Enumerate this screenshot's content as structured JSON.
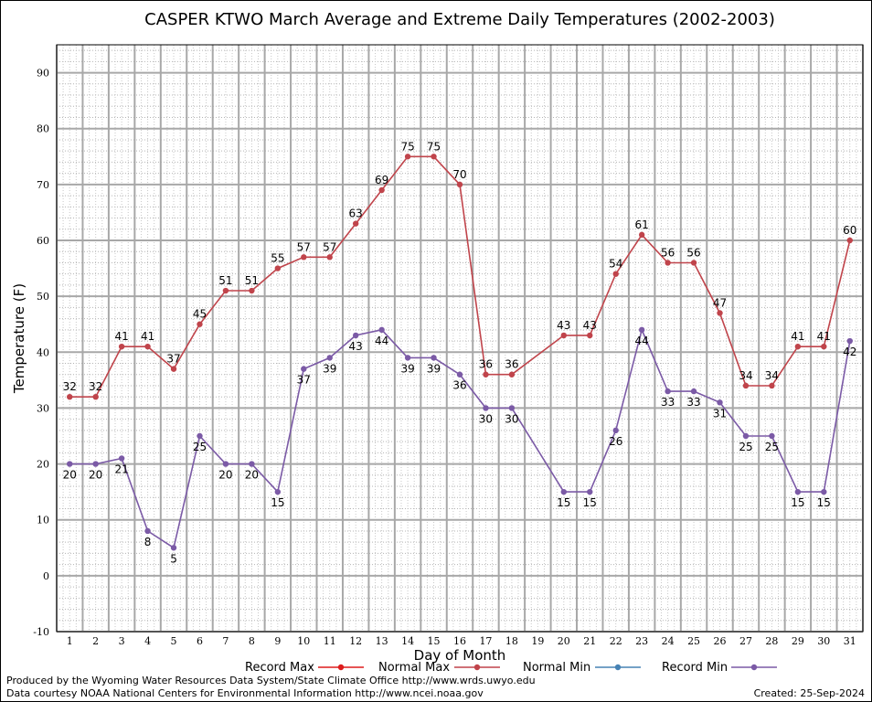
{
  "chart_data": {
    "type": "line",
    "title": "CASPER KTWO March Average and Extreme Daily Temperatures (2002-2003)",
    "xlabel": "Day of Month",
    "ylabel": "Temperature (F)",
    "x": [
      1,
      2,
      3,
      4,
      5,
      6,
      7,
      8,
      9,
      10,
      11,
      12,
      13,
      14,
      15,
      16,
      17,
      18,
      19,
      20,
      21,
      22,
      23,
      24,
      25,
      26,
      27,
      28,
      29,
      30,
      31
    ],
    "xlim": [
      1,
      31
    ],
    "ylim": [
      -10,
      95
    ],
    "yticks": [
      -10,
      0,
      10,
      20,
      30,
      40,
      50,
      60,
      70,
      80,
      90
    ],
    "grid": true,
    "legend_position": "bottom",
    "legend": [
      {
        "name": "Record Max",
        "color": "#dd1c1c"
      },
      {
        "name": "Normal Max",
        "color": "#c0444b"
      },
      {
        "name": "Normal Min",
        "color": "#4682b4"
      },
      {
        "name": "Record Min",
        "color": "#7b5aa6"
      }
    ],
    "series": [
      {
        "name": "Normal Max",
        "color": "#c0444b",
        "x": [
          1,
          2,
          3,
          4,
          5,
          6,
          7,
          8,
          9,
          10,
          11,
          12,
          13,
          14,
          15,
          16,
          17,
          18,
          20,
          21,
          22,
          23,
          24,
          25,
          26,
          27,
          28,
          29,
          30,
          31
        ],
        "values": [
          32,
          32,
          41,
          41,
          37,
          45,
          51,
          51,
          55,
          57,
          57,
          63,
          69,
          75,
          75,
          70,
          36,
          36,
          43,
          43,
          54,
          61,
          56,
          56,
          47,
          34,
          34,
          41,
          41,
          60
        ],
        "label_side": "above"
      },
      {
        "name": "Record Min",
        "color": "#7b5aa6",
        "x": [
          1,
          2,
          3,
          4,
          5,
          6,
          7,
          8,
          9,
          10,
          11,
          12,
          13,
          14,
          15,
          16,
          17,
          18,
          20,
          21,
          22,
          23,
          24,
          25,
          26,
          27,
          28,
          29,
          30,
          31
        ],
        "values": [
          20,
          20,
          21,
          8,
          5,
          25,
          20,
          20,
          15,
          37,
          39,
          43,
          44,
          39,
          39,
          36,
          30,
          30,
          15,
          15,
          26,
          44,
          33,
          33,
          31,
          25,
          25,
          15,
          15,
          42
        ],
        "label_side": "below"
      }
    ]
  },
  "footer": {
    "produced_by": "Produced by the Wyoming Water Resources Data System/State Climate Office http://www.wrds.uwyo.edu",
    "data_courtesy": "Data courtesy NOAA National Centers for Environmental Information http://www.ncei.noaa.gov",
    "created": "Created:  25-Sep-2024"
  }
}
